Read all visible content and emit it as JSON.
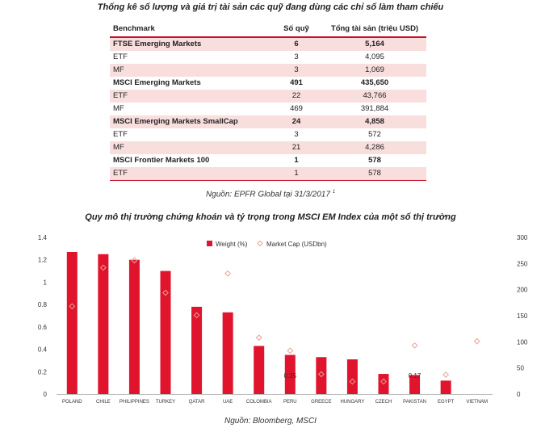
{
  "table_title": "Thống kê số lượng và giá trị tài sản các quỹ đang dùng các chỉ số làm tham chiếu",
  "table": {
    "headers": [
      "Benchmark",
      "Số quỹ",
      "Tổng tài sản (triệu USD)"
    ],
    "rows": [
      {
        "name": "FTSE Emerging Markets",
        "funds": "6",
        "assets": "5,164"
      },
      {
        "name": "ETF",
        "funds": "3",
        "assets": "4,095"
      },
      {
        "name": "MF",
        "funds": "3",
        "assets": "1,069"
      },
      {
        "name": "MSCI Emerging Markets",
        "funds": "491",
        "assets": "435,650"
      },
      {
        "name": "ETF",
        "funds": "22",
        "assets": "43,766"
      },
      {
        "name": "MF",
        "funds": "469",
        "assets": "391,884"
      },
      {
        "name": "MSCI Emerging Markets SmallCap",
        "funds": "24",
        "assets": "4,858"
      },
      {
        "name": "ETF",
        "funds": "3",
        "assets": "572"
      },
      {
        "name": "MF",
        "funds": "21",
        "assets": "4,286"
      },
      {
        "name": "MSCI Frontier Markets 100",
        "funds": "1",
        "assets": "578"
      },
      {
        "name": "ETF",
        "funds": "1",
        "assets": "578"
      }
    ]
  },
  "table_source": "Nguồn: EPFR Global tại 31/3/2017",
  "table_source_note": "1",
  "chart_title": "Quy mô thị trường chứng khoán và tỷ trọng trong MSCI EM Index của một số thị trường",
  "chart_source": "Nguồn: Bloomberg, MSCI",
  "colors": {
    "bar": "#e0142d",
    "marker": "#e8a196",
    "accent": "#c8102e"
  },
  "chart_data": {
    "type": "bar",
    "categories": [
      "POLAND",
      "CHILE",
      "PHILIPPINES",
      "TURKEY",
      "QATAR",
      "UAE",
      "COLOMBIA",
      "PERU",
      "GREECE",
      "HUNGARY",
      "CZECH",
      "PAKISTAN",
      "EGYPT",
      "VIETNAM"
    ],
    "series": [
      {
        "name": "Weight (%)",
        "axis": "left",
        "kind": "bar",
        "values": [
          1.27,
          1.25,
          1.2,
          1.1,
          0.78,
          0.73,
          0.43,
          0.35,
          0.33,
          0.31,
          0.18,
          0.17,
          0.12,
          0
        ]
      },
      {
        "name": "Market Cap (USDbn)",
        "axis": "right",
        "kind": "marker",
        "values": [
          168,
          242,
          256,
          194,
          151,
          231,
          108,
          83,
          38,
          24,
          24,
          93,
          37,
          101
        ]
      }
    ],
    "data_labels": [
      {
        "category": "PERU",
        "text": "0.35"
      },
      {
        "category": "PAKISTAN",
        "text": "0.17"
      }
    ],
    "y_left": {
      "ticks": [
        "0",
        "0.2",
        "0.4",
        "0.6",
        "0.8",
        "1",
        "1.2",
        "1.4"
      ],
      "range": [
        0,
        1.4
      ]
    },
    "y_right": {
      "ticks": [
        "0",
        "50",
        "100",
        "150",
        "200",
        "250",
        "300"
      ],
      "range": [
        0,
        300
      ]
    },
    "legend_position": "top-right",
    "grid": false
  }
}
